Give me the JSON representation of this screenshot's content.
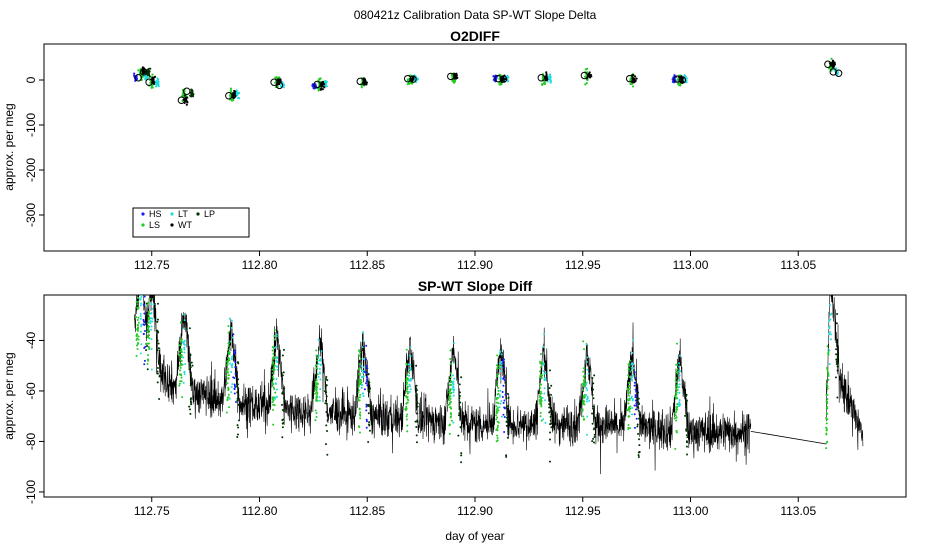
{
  "main_title": "080421z   Calibration Data SP-WT Slope Delta",
  "colors": {
    "HS": "#1a1aff",
    "LS": "#22cc22",
    "LT": "#22dddd",
    "WT": "#000000",
    "LP": "#003300",
    "line": "#000000"
  },
  "legend": {
    "items": [
      {
        "key": "HS",
        "label": "HS",
        "color": "#1a1aff"
      },
      {
        "key": "LS",
        "label": "LS",
        "color": "#22cc22"
      },
      {
        "key": "LT",
        "label": "LT",
        "color": "#22dddd"
      },
      {
        "key": "WT",
        "label": "WT",
        "color": "#000000"
      },
      {
        "key": "LP",
        "label": "LP",
        "color": "#003300"
      }
    ]
  },
  "chart_data": [
    {
      "type": "scatter",
      "title": "O2DIFF",
      "xlabel": "",
      "ylabel": "approx. per meg",
      "xlim": [
        112.7,
        113.1
      ],
      "ylim": [
        -380,
        80
      ],
      "xticks": [
        112.75,
        112.8,
        112.85,
        112.9,
        112.95,
        113.0,
        113.05
      ],
      "xtick_labels": [
        "112.75",
        "112.80",
        "112.85",
        "112.90",
        "112.95",
        "113.00",
        "113.05"
      ],
      "yticks": [
        0,
        -100,
        -200,
        -300
      ],
      "ytick_labels": [
        "0",
        "-100",
        "-200",
        "-300"
      ],
      "legend_position": "bottom-left",
      "groups": [
        {
          "x": 112.745,
          "means": {
            "HS": 5,
            "LS": 15,
            "LT": 8,
            "WT": 20,
            "LP": 18
          },
          "circles": [
            5,
            18
          ]
        },
        {
          "x": 112.75,
          "means": {
            "LS": -5,
            "LT": -5,
            "WT": -3
          },
          "circles": [
            -5
          ]
        },
        {
          "x": 112.765,
          "means": {
            "LS": -35,
            "WT": -45,
            "LP": -30
          },
          "circles": [
            -45,
            -25
          ]
        },
        {
          "x": 112.787,
          "means": {
            "LS": -35,
            "LT": -32,
            "WT": -33
          },
          "circles": [
            -35
          ]
        },
        {
          "x": 112.808,
          "means": {
            "LS": -5,
            "LT": -12,
            "WT": -5
          },
          "circles": [
            -5,
            -12
          ]
        },
        {
          "x": 112.828,
          "means": {
            "HS": -15,
            "LS": -10,
            "LT": -8,
            "WT": -12
          },
          "circles": [
            -10
          ]
        },
        {
          "x": 112.848,
          "means": {
            "LS": -5,
            "WT": -3
          },
          "circles": [
            -3
          ]
        },
        {
          "x": 112.87,
          "means": {
            "LS": 0,
            "LT": 3,
            "WT": 2
          },
          "circles": [
            3,
            2
          ]
        },
        {
          "x": 112.89,
          "means": {
            "LS": 5,
            "WT": 8
          },
          "circles": [
            8
          ]
        },
        {
          "x": 112.912,
          "means": {
            "HS": 2,
            "LS": 0,
            "LT": 3,
            "WT": 3
          },
          "circles": [
            3,
            2
          ]
        },
        {
          "x": 112.932,
          "means": {
            "LS": 3,
            "LT": 5,
            "WT": 5
          },
          "circles": [
            5
          ]
        },
        {
          "x": 112.952,
          "means": {
            "LS": 8,
            "WT": 10
          },
          "circles": [
            10
          ]
        },
        {
          "x": 112.973,
          "means": {
            "LS": 0,
            "WT": 3
          },
          "circles": [
            3
          ]
        },
        {
          "x": 112.995,
          "means": {
            "HS": 2,
            "LS": 0,
            "LT": 3,
            "WT": 0
          },
          "circles": [
            2,
            0
          ]
        },
        {
          "x": 113.065,
          "means": {
            "LS": 30,
            "LT": 18,
            "WT": 35
          },
          "circles": [
            35,
            18,
            15
          ]
        }
      ]
    },
    {
      "type": "line",
      "title": "SP-WT Slope Diff",
      "xlabel": "day of year",
      "ylabel": "approx. per meg",
      "xlim": [
        112.7,
        113.1
      ],
      "ylim": [
        -102,
        -22
      ],
      "xticks": [
        112.75,
        112.8,
        112.85,
        112.9,
        112.95,
        113.0,
        113.05
      ],
      "xtick_labels": [
        "112.75",
        "112.80",
        "112.85",
        "112.90",
        "112.95",
        "113.00",
        "113.05"
      ],
      "yticks": [
        -40,
        -60,
        -80,
        -100
      ],
      "ytick_labels": [
        "-40",
        "-60",
        "-80",
        "-100"
      ],
      "baseline_trend": [
        {
          "x": 112.742,
          "y": -40
        },
        {
          "x": 112.76,
          "y": -58
        },
        {
          "x": 112.79,
          "y": -65
        },
        {
          "x": 112.82,
          "y": -68
        },
        {
          "x": 112.85,
          "y": -70
        },
        {
          "x": 112.9,
          "y": -73
        },
        {
          "x": 112.95,
          "y": -73
        },
        {
          "x": 113.0,
          "y": -76
        },
        {
          "x": 113.028,
          "y": -76
        },
        {
          "x": 113.063,
          "y": -81
        },
        {
          "x": 113.065,
          "y": -45
        },
        {
          "x": 113.08,
          "y": -78
        }
      ],
      "gap_line": {
        "x1": 113.028,
        "y1": -76,
        "x2": 113.063,
        "y2": -81
      },
      "spikes": [
        112.745,
        112.75,
        112.765,
        112.787,
        112.808,
        112.828,
        112.848,
        112.87,
        112.89,
        112.912,
        112.932,
        112.952,
        112.973,
        112.995,
        113.065
      ]
    }
  ]
}
